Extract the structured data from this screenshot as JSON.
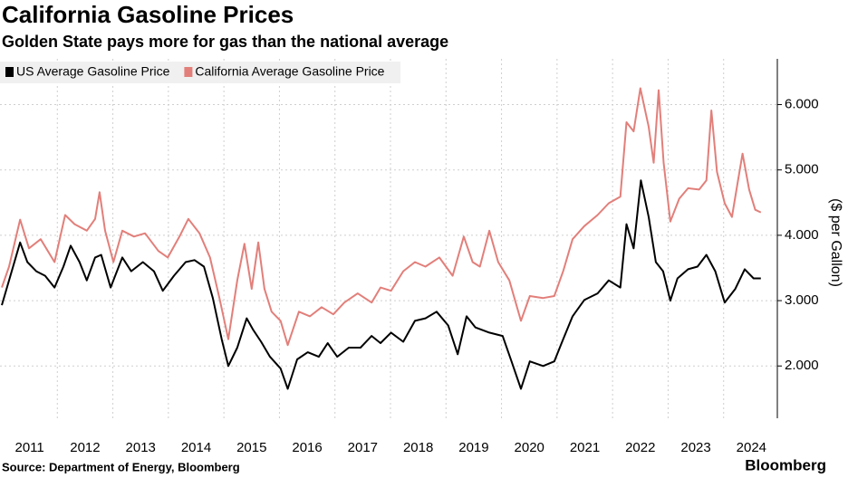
{
  "chart_data": {
    "type": "line",
    "title": "California Gasoline Prices",
    "subtitle": "Golden State pays more for gas than the national average",
    "y_label": "($ per Gallon)",
    "source": "Source: Department of Energy, Bloomberg",
    "brand": "Bloomberg",
    "xlim": [
      2011,
      2025
    ],
    "xticks": [
      {
        "value": 2011.5,
        "label": "2011"
      },
      {
        "value": 2012.5,
        "label": "2012"
      },
      {
        "value": 2013.5,
        "label": "2013"
      },
      {
        "value": 2014.5,
        "label": "2014"
      },
      {
        "value": 2015.5,
        "label": "2015"
      },
      {
        "value": 2016.5,
        "label": "2016"
      },
      {
        "value": 2017.5,
        "label": "2017"
      },
      {
        "value": 2018.5,
        "label": "2018"
      },
      {
        "value": 2019.5,
        "label": "2019"
      },
      {
        "value": 2020.5,
        "label": "2020"
      },
      {
        "value": 2021.5,
        "label": "2021"
      },
      {
        "value": 2022.5,
        "label": "2022"
      },
      {
        "value": 2023.5,
        "label": "2023"
      },
      {
        "value": 2024.5,
        "label": "2024"
      }
    ],
    "xgrid": [
      2012,
      2013,
      2014,
      2015,
      2016,
      2017,
      2018,
      2019,
      2020,
      2021,
      2022,
      2023,
      2024
    ],
    "ylim": [
      1.2,
      6.7
    ],
    "yticks": [
      {
        "value": 2,
        "label": "2.000"
      },
      {
        "value": 3,
        "label": "3.000"
      },
      {
        "value": 4,
        "label": "4.000"
      },
      {
        "value": 5,
        "label": "5.000"
      },
      {
        "value": 6,
        "label": "6.000"
      }
    ],
    "grid": true,
    "legend": "top-left",
    "series": [
      {
        "name": "US Average Gasoline Price",
        "color": "#000000",
        "x": [
          2011.0,
          2011.13,
          2011.33,
          2011.46,
          2011.62,
          2011.78,
          2011.95,
          2012.11,
          2012.24,
          2012.4,
          2012.53,
          2012.68,
          2012.79,
          2012.96,
          2013.17,
          2013.33,
          2013.54,
          2013.74,
          2013.9,
          2014.1,
          2014.31,
          2014.47,
          2014.64,
          2014.8,
          2014.96,
          2015.08,
          2015.24,
          2015.41,
          2015.53,
          2015.67,
          2015.83,
          2016.02,
          2016.15,
          2016.32,
          2016.51,
          2016.71,
          2016.87,
          2017.04,
          2017.25,
          2017.46,
          2017.66,
          2017.82,
          2018.01,
          2018.23,
          2018.44,
          2018.63,
          2018.83,
          2019.04,
          2019.21,
          2019.37,
          2019.53,
          2019.78,
          2020.02,
          2020.18,
          2020.35,
          2020.51,
          2020.75,
          2020.95,
          2021.11,
          2021.28,
          2021.49,
          2021.73,
          2021.93,
          2022.14,
          2022.25,
          2022.38,
          2022.51,
          2022.65,
          2022.78,
          2022.91,
          2023.04,
          2023.17,
          2023.36,
          2023.53,
          2023.69,
          2023.85,
          2024.02,
          2024.21,
          2024.38,
          2024.54,
          2024.67
        ],
        "values": [
          2.93,
          3.31,
          3.89,
          3.59,
          3.45,
          3.38,
          3.2,
          3.52,
          3.84,
          3.59,
          3.31,
          3.66,
          3.7,
          3.2,
          3.66,
          3.45,
          3.59,
          3.45,
          3.15,
          3.38,
          3.59,
          3.62,
          3.52,
          3.04,
          2.41,
          2.0,
          2.28,
          2.73,
          2.55,
          2.37,
          2.14,
          1.96,
          1.65,
          2.1,
          2.21,
          2.14,
          2.35,
          2.14,
          2.28,
          2.28,
          2.46,
          2.35,
          2.51,
          2.37,
          2.69,
          2.73,
          2.83,
          2.62,
          2.18,
          2.76,
          2.59,
          2.51,
          2.46,
          2.07,
          1.65,
          2.07,
          2.0,
          2.07,
          2.41,
          2.76,
          3.01,
          3.11,
          3.31,
          3.2,
          4.17,
          3.8,
          4.84,
          4.28,
          3.59,
          3.45,
          3.0,
          3.34,
          3.48,
          3.52,
          3.7,
          3.45,
          2.97,
          3.18,
          3.48,
          3.34,
          3.34
        ]
      },
      {
        "name": "California Average Gasoline Price",
        "color": "#e27f7a",
        "x": [
          2011.0,
          2011.13,
          2011.33,
          2011.49,
          2011.7,
          2011.95,
          2012.14,
          2012.31,
          2012.53,
          2012.68,
          2012.76,
          2012.86,
          2013.01,
          2013.17,
          2013.38,
          2013.58,
          2013.82,
          2013.99,
          2014.2,
          2014.36,
          2014.56,
          2014.75,
          2014.92,
          2015.08,
          2015.24,
          2015.37,
          2015.5,
          2015.62,
          2015.73,
          2015.86,
          2016.02,
          2016.15,
          2016.35,
          2016.55,
          2016.76,
          2016.97,
          2017.17,
          2017.41,
          2017.66,
          2017.82,
          2018.01,
          2018.23,
          2018.44,
          2018.63,
          2018.88,
          2019.12,
          2019.32,
          2019.48,
          2019.61,
          2019.78,
          2019.94,
          2020.14,
          2020.35,
          2020.51,
          2020.75,
          2020.95,
          2021.11,
          2021.28,
          2021.49,
          2021.73,
          2021.93,
          2022.14,
          2022.25,
          2022.38,
          2022.5,
          2022.65,
          2022.74,
          2022.83,
          2022.92,
          2023.04,
          2023.2,
          2023.36,
          2023.56,
          2023.69,
          2023.78,
          2023.88,
          2024.02,
          2024.15,
          2024.26,
          2024.34,
          2024.46,
          2024.57,
          2024.67
        ],
        "values": [
          3.2,
          3.52,
          4.24,
          3.8,
          3.94,
          3.59,
          4.31,
          4.17,
          4.07,
          4.25,
          4.66,
          4.07,
          3.59,
          4.07,
          3.98,
          4.03,
          3.76,
          3.66,
          3.98,
          4.25,
          4.03,
          3.66,
          3.04,
          2.41,
          3.31,
          3.87,
          3.18,
          3.89,
          3.18,
          2.83,
          2.69,
          2.32,
          2.83,
          2.76,
          2.9,
          2.79,
          2.97,
          3.11,
          2.97,
          3.2,
          3.15,
          3.45,
          3.59,
          3.52,
          3.66,
          3.38,
          3.98,
          3.59,
          3.52,
          4.07,
          3.59,
          3.31,
          2.69,
          3.07,
          3.04,
          3.07,
          3.45,
          3.94,
          4.14,
          4.31,
          4.49,
          4.59,
          5.73,
          5.59,
          6.25,
          5.66,
          5.11,
          6.22,
          5.11,
          4.21,
          4.56,
          4.72,
          4.7,
          4.84,
          5.91,
          4.97,
          4.49,
          4.28,
          4.84,
          5.25,
          4.7,
          4.39,
          4.35
        ]
      }
    ]
  }
}
